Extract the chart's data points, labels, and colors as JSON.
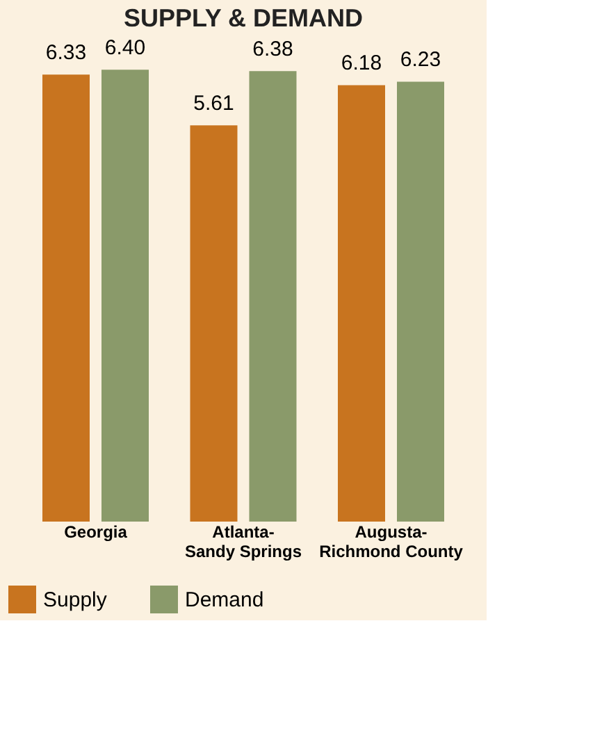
{
  "chart_data": {
    "type": "bar",
    "title": "SUPPLY & DEMAND",
    "categories": [
      "Georgia",
      "Atlanta-\nSandy Springs",
      "Augusta-\nRichmond County"
    ],
    "series": [
      {
        "name": "Supply",
        "color": "#c8741f",
        "values": [
          6.33,
          5.61,
          6.18
        ],
        "value_labels": [
          "6.33",
          "5.61",
          "6.18"
        ]
      },
      {
        "name": "Demand",
        "color": "#8a9a6a",
        "values": [
          6.4,
          6.38,
          6.23
        ],
        "value_labels": [
          "6.40",
          "6.38",
          "6.23"
        ]
      }
    ],
    "data_labels": true,
    "legend": "bottom"
  }
}
